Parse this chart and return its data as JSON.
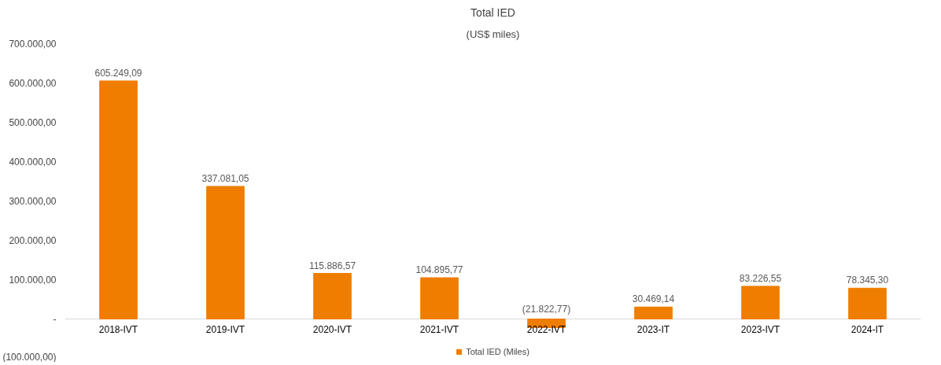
{
  "chart_data": {
    "type": "bar",
    "title": "Total IED",
    "subtitle": "(US$ miles)",
    "categories": [
      "2018-IVT",
      "2019-IVT",
      "2020-IVT",
      "2021-IVT",
      "2022-IVT",
      "2023-IT",
      "2023-IVT",
      "2024-IT"
    ],
    "series": [
      {
        "name": "Total IED (Miles)",
        "color": "#ef7d00",
        "values": [
          605249.09,
          337081.05,
          115886.57,
          104895.77,
          -21822.77,
          30469.14,
          83226.55,
          78345.3
        ],
        "value_labels": [
          "605.249,09",
          "337.081,05",
          "115.886,57",
          "104.895,77",
          "(21.822,77)",
          "30.469,14",
          "83.226,55",
          "78.345,30"
        ]
      }
    ],
    "ylim": [
      -100000,
      700000
    ],
    "yticks": [
      {
        "value": -100000,
        "label": "(100.000,00)"
      },
      {
        "value": 0,
        "label": "-"
      },
      {
        "value": 100000,
        "label": "100.000,00"
      },
      {
        "value": 200000,
        "label": "200.000,00"
      },
      {
        "value": 300000,
        "label": "300.000,00"
      },
      {
        "value": 400000,
        "label": "400.000,00"
      },
      {
        "value": 500000,
        "label": "500.000,00"
      },
      {
        "value": 600000,
        "label": "600.000,00"
      },
      {
        "value": 700000,
        "label": "700.000,00"
      }
    ],
    "grid": false,
    "legend": "bottom"
  }
}
